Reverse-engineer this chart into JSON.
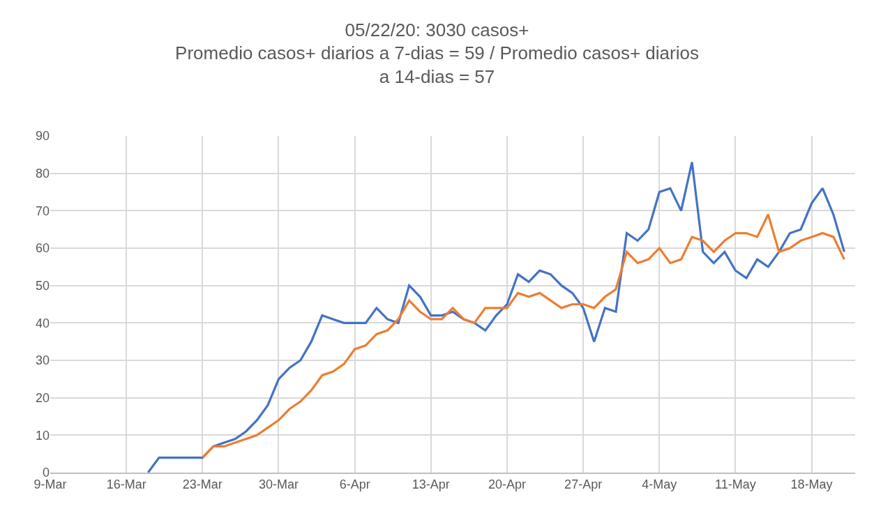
{
  "chart_data": {
    "type": "line",
    "title": "05/22/20: 3030 casos+\nPromedio casos+ diarios a 7-dias = 59 / Promedio casos+ diarios\na 14-dias = 57",
    "x": [
      "--03-18",
      "--03-19",
      "--03-20",
      "--03-21",
      "--03-22",
      "--03-23",
      "--03-24",
      "--03-25",
      "--03-26",
      "--03-27",
      "--03-28",
      "--03-29",
      "--03-30",
      "--03-31",
      "--04-01",
      "--04-02",
      "--04-03",
      "--04-04",
      "--04-05",
      "--04-06",
      "--04-07",
      "--04-08",
      "--04-09",
      "--04-10",
      "--04-11",
      "--04-12",
      "--04-13",
      "--04-14",
      "--04-15",
      "--04-16",
      "--04-17",
      "--04-18",
      "--04-19",
      "--04-20",
      "--04-21",
      "--04-22",
      "--04-23",
      "--04-24",
      "--04-25",
      "--04-26",
      "--04-27",
      "--04-28",
      "--04-29",
      "--04-30",
      "--05-01",
      "--05-02",
      "--05-03",
      "--05-04",
      "--05-05",
      "--05-06",
      "--05-07",
      "--05-08",
      "--05-09",
      "--05-10",
      "--05-11",
      "--05-12",
      "--05-13",
      "--05-14",
      "--05-15",
      "--05-16",
      "--05-17",
      "--05-18",
      "--05-19",
      "--05-20",
      "--05-21"
    ],
    "series": [
      {
        "color": "#4472c4",
        "values": [
          0,
          4,
          4,
          4,
          4,
          4,
          7,
          8,
          9,
          11,
          14,
          18,
          25,
          28,
          30,
          35,
          42,
          41,
          40,
          40,
          40,
          44,
          41,
          40,
          50,
          47,
          42,
          42,
          43,
          41,
          40,
          38,
          42,
          45,
          53,
          51,
          54,
          53,
          50,
          48,
          44,
          35,
          44,
          43,
          64,
          62,
          65,
          75,
          76,
          70,
          83,
          59,
          56,
          59,
          54,
          52,
          57,
          55,
          59,
          64,
          65,
          72,
          76,
          69,
          59
        ]
      },
      {
        "color": "#ed7d31",
        "values": [
          null,
          null,
          null,
          null,
          null,
          4,
          7,
          7,
          8,
          9,
          10,
          12,
          14,
          17,
          19,
          22,
          26,
          27,
          29,
          33,
          34,
          37,
          38,
          41,
          46,
          43,
          41,
          41,
          44,
          41,
          40,
          44,
          44,
          44,
          48,
          47,
          48,
          46,
          44,
          45,
          45,
          44,
          47,
          49,
          59,
          56,
          57,
          60,
          56,
          57,
          63,
          62,
          59,
          62,
          64,
          64,
          63,
          69,
          59,
          60,
          62,
          63,
          64,
          63,
          57
        ]
      }
    ],
    "xlim": [
      "--03-09",
      "--05-22"
    ],
    "xticks": [
      {
        "value": "--03-09",
        "label": "9-Mar"
      },
      {
        "value": "--03-16",
        "label": "16-Mar"
      },
      {
        "value": "--03-23",
        "label": "23-Mar"
      },
      {
        "value": "--03-30",
        "label": "30-Mar"
      },
      {
        "value": "--04-06",
        "label": "6-Apr"
      },
      {
        "value": "--04-13",
        "label": "13-Apr"
      },
      {
        "value": "--04-20",
        "label": "20-Apr"
      },
      {
        "value": "--04-27",
        "label": "27-Apr"
      },
      {
        "value": "--05-04",
        "label": "4-May"
      },
      {
        "value": "--05-11",
        "label": "11-May"
      },
      {
        "value": "--05-18",
        "label": "18-May"
      }
    ],
    "ylim": [
      0,
      90
    ],
    "yticks": [
      0,
      10,
      20,
      30,
      40,
      50,
      60,
      70,
      80,
      90
    ],
    "grid": true,
    "marker": "none",
    "line_style": "solid"
  }
}
